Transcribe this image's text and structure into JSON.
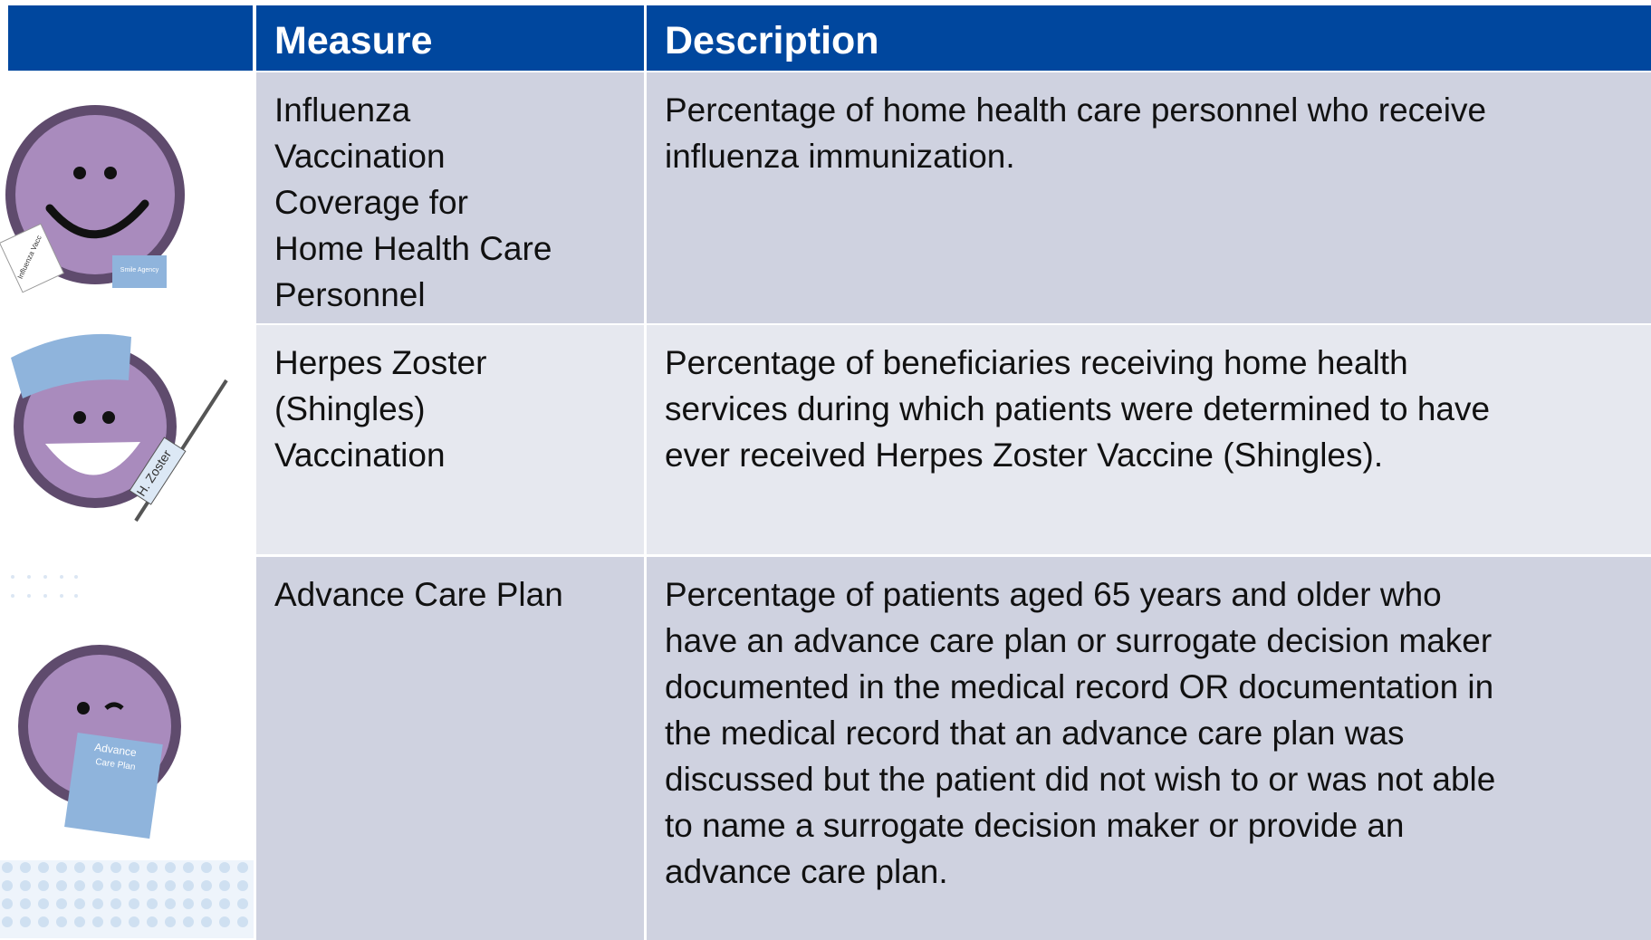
{
  "table": {
    "header": [
      "Measure",
      "Description"
    ],
    "rows": [
      [
        [
          "Influenza",
          "Vaccination",
          "Coverage for",
          "Home Health Care",
          "Personnel"
        ],
        [
          "Percentage of home health care personnel who receive",
          "influenza immunization."
        ]
      ],
      [
        [
          "Herpes Zoster",
          "(Shingles)",
          "Vaccination"
        ],
        [
          "Percentage of beneficiaries receiving home health",
          "services during which patients were determined to have",
          "ever received Herpes Zoster Vaccine (Shingles)."
        ]
      ],
      [
        [
          "Advance Care Plan"
        ],
        [
          "Percentage of patients aged 65 years and older who",
          "have an advance care plan or surrogate decision maker",
          "documented in the medical record OR documentation in",
          "the medical record that an advance care plan was",
          "discussed but the patient did not wish to or was not able",
          "to name a surrogate decision maker or provide an",
          "advance care plan."
        ]
      ]
    ]
  },
  "icons": {
    "influenza_card": "Influenza Vacc",
    "badge": "Smile Agency",
    "syringe": "H. Zoster",
    "plan_title": "Advance",
    "plan_subtitle": "Care Plan"
  }
}
